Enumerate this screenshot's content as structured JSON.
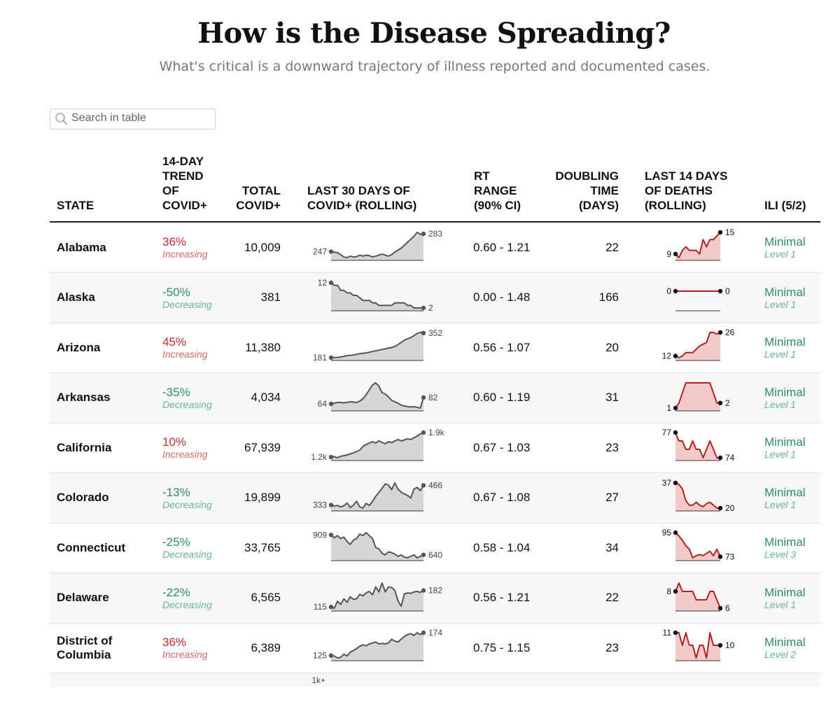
{
  "title": "How is the Disease Spreading?",
  "subtitle": "What's critical is a downward trajectory of illness reported and documented cases.",
  "search": {
    "placeholder": "Search in table",
    "icon": "search-icon"
  },
  "headers": {
    "state": [
      "STATE"
    ],
    "trend": [
      "14-DAY",
      "TREND",
      "OF",
      "COVID+"
    ],
    "total": [
      "TOTAL",
      "COVID+"
    ],
    "last30": [
      "LAST 30 DAYS OF",
      "COVID+ (ROLLING)"
    ],
    "rt": [
      "RT",
      "RANGE",
      "(90% CI)"
    ],
    "doubling": [
      "DOUBLING",
      "TIME",
      "(DAYS)"
    ],
    "deaths": [
      "LAST 14 DAYS",
      "OF DEATHS",
      "(ROLLING)"
    ],
    "ili": [
      "ILI (5/2)"
    ]
  },
  "colors": {
    "increasing": "#c62d2d",
    "decreasing": "#2e8b6e",
    "case_line": "#555555",
    "case_fill": "#d6d6d6",
    "death_line": "#b22222",
    "death_fill": "#f3caca"
  },
  "rows": [
    {
      "state": [
        "Alabama"
      ],
      "trend_pct": "36%",
      "trend_label": "Increasing",
      "direction": "inc",
      "total": "10,009",
      "case_start": "247",
      "case_end": "283",
      "case_series": [
        247,
        246,
        245,
        241,
        236,
        235,
        238,
        236,
        237,
        240,
        238,
        240,
        239,
        236,
        238,
        240,
        242,
        240,
        238,
        241,
        246,
        250,
        254,
        260,
        266,
        272,
        278,
        286,
        282,
        283
      ],
      "rt": "0.60 - 1.21",
      "doubling": "22",
      "death_start": "9",
      "death_end": "15",
      "death_series": [
        9,
        8,
        10,
        11,
        10,
        10,
        10,
        9,
        13,
        11,
        13,
        13,
        14,
        15
      ],
      "ili_level": "Minimal",
      "ili_detail": "Level 1"
    },
    {
      "state": [
        "Alaska"
      ],
      "trend_pct": "-50%",
      "trend_label": "Decreasing",
      "direction": "dec",
      "total": "381",
      "case_start": "12",
      "case_end": "2",
      "case_series": [
        12,
        11,
        11,
        9,
        9,
        8,
        8,
        7,
        7,
        6,
        5,
        5,
        5,
        4,
        4,
        3,
        3,
        3,
        3,
        3,
        4,
        4,
        4,
        4,
        3,
        3,
        2,
        2,
        2,
        2
      ],
      "rt": "0.00 - 1.48",
      "doubling": "166",
      "death_start": "0",
      "death_end": "0",
      "death_series": [
        0,
        0,
        0,
        0,
        0,
        0,
        0,
        0,
        0,
        0,
        0,
        0,
        0,
        0
      ],
      "ili_level": "Minimal",
      "ili_detail": "Level 1"
    },
    {
      "state": [
        "Arizona"
      ],
      "trend_pct": "45%",
      "trend_label": "Increasing",
      "direction": "inc",
      "total": "11,380",
      "case_start": "181",
      "case_end": "352",
      "case_series": [
        181,
        182,
        183,
        186,
        190,
        195,
        197,
        199,
        204,
        209,
        211,
        214,
        219,
        224,
        229,
        233,
        238,
        242,
        247,
        252,
        259,
        272,
        287,
        302,
        312,
        320,
        333,
        349,
        356,
        352
      ],
      "rt": "0.56 - 1.07",
      "doubling": "20",
      "death_start": "12",
      "death_end": "26",
      "death_series": [
        12,
        11,
        12,
        14,
        14,
        14,
        16,
        18,
        19,
        20,
        26,
        26,
        25,
        26
      ],
      "ili_level": "Minimal",
      "ili_detail": "Level 1"
    },
    {
      "state": [
        "Arkansas"
      ],
      "trend_pct": "-35%",
      "trend_label": "Decreasing",
      "direction": "dec",
      "total": "4,034",
      "case_start": "64",
      "case_end": "82",
      "case_series": [
        64,
        66,
        68,
        68,
        67,
        68,
        70,
        69,
        68,
        72,
        78,
        90,
        104,
        118,
        124,
        114,
        96,
        92,
        84,
        74,
        70,
        66,
        60,
        58,
        56,
        55,
        56,
        54,
        52,
        82
      ],
      "rt": "0.60 - 1.19",
      "doubling": "31",
      "death_start": "1",
      "death_end": "2",
      "death_series": [
        1,
        2,
        4,
        6,
        6,
        6,
        6,
        6,
        6,
        6,
        6,
        4,
        2,
        2
      ],
      "ili_level": "Minimal",
      "ili_detail": "Level 1"
    },
    {
      "state": [
        "California"
      ],
      "trend_pct": "10%",
      "trend_label": "Increasing",
      "direction": "inc",
      "total": "67,939",
      "case_start": "1.2k",
      "case_end": "1.9k",
      "case_series": [
        1200,
        1210,
        1180,
        1220,
        1240,
        1260,
        1290,
        1320,
        1360,
        1400,
        1500,
        1560,
        1600,
        1640,
        1600,
        1660,
        1620,
        1580,
        1640,
        1610,
        1660,
        1700,
        1660,
        1690,
        1720,
        1700,
        1750,
        1800,
        1860,
        1900
      ],
      "rt": "0.67 - 1.03",
      "doubling": "23",
      "death_start": "77",
      "death_end": "74",
      "death_series": [
        77,
        76,
        76,
        75,
        75,
        76,
        75,
        75,
        74,
        75,
        76,
        75,
        74,
        74
      ],
      "ili_level": "Minimal",
      "ili_detail": "Level 1"
    },
    {
      "state": [
        "Colorado"
      ],
      "trend_pct": "-13%",
      "trend_label": "Decreasing",
      "direction": "dec",
      "total": "19,899",
      "case_start": "333",
      "case_end": "466",
      "case_series": [
        333,
        326,
        330,
        320,
        328,
        346,
        316,
        332,
        358,
        320,
        312,
        344,
        330,
        358,
        392,
        418,
        446,
        476,
        468,
        436,
        482,
        440,
        420,
        408,
        398,
        380,
        440,
        452,
        430,
        466
      ],
      "rt": "0.67 - 1.08",
      "doubling": "27",
      "death_start": "37",
      "death_end": "20",
      "death_series": [
        37,
        36,
        33,
        25,
        22,
        22,
        24,
        22,
        21,
        23,
        24,
        22,
        20,
        20
      ],
      "ili_level": "Minimal",
      "ili_detail": "Level 1"
    },
    {
      "state": [
        "Connecticut"
      ],
      "trend_pct": "-25%",
      "trend_label": "Decreasing",
      "direction": "dec",
      "total": "33,765",
      "case_start": "909",
      "case_end": "640",
      "case_series": [
        909,
        870,
        900,
        860,
        880,
        820,
        780,
        840,
        860,
        920,
        900,
        940,
        900,
        860,
        740,
        720,
        660,
        640,
        680,
        670,
        650,
        620,
        640,
        610,
        600,
        620,
        640,
        600,
        620,
        640
      ],
      "rt": "0.58 - 1.04",
      "doubling": "34",
      "death_start": "95",
      "death_end": "73",
      "death_series": [
        95,
        92,
        88,
        83,
        80,
        72,
        74,
        75,
        74,
        76,
        78,
        74,
        80,
        73
      ],
      "ili_level": "Minimal",
      "ili_detail": "Level 3"
    },
    {
      "state": [
        "Delaware"
      ],
      "trend_pct": "-22%",
      "trend_label": "Decreasing",
      "direction": "dec",
      "total": "6,565",
      "case_start": "115",
      "case_end": "182",
      "case_series": [
        115,
        110,
        138,
        126,
        148,
        134,
        156,
        146,
        148,
        166,
        160,
        172,
        178,
        164,
        196,
        176,
        212,
        176,
        196,
        194,
        182,
        140,
        118,
        168,
        172,
        170,
        176,
        178,
        174,
        182
      ],
      "rt": "0.56 - 1.21",
      "doubling": "22",
      "death_start": "8",
      "death_end": "6",
      "death_series": [
        8,
        9,
        8,
        8,
        8,
        8,
        7,
        7,
        7,
        7,
        8,
        8,
        7,
        6
      ],
      "ili_level": "Minimal",
      "ili_detail": "Level 1"
    },
    {
      "state": [
        "District of",
        "Columbia"
      ],
      "trend_pct": "36%",
      "trend_label": "Increasing",
      "direction": "inc",
      "total": "6,389",
      "case_start": "125",
      "case_end": "174",
      "case_series": [
        125,
        124,
        120,
        121,
        128,
        124,
        132,
        136,
        140,
        145,
        148,
        146,
        150,
        152,
        154,
        150,
        151,
        150,
        152,
        160,
        156,
        154,
        160,
        166,
        170,
        172,
        168,
        174,
        170,
        174
      ],
      "rt": "0.75 - 1.15",
      "doubling": "23",
      "death_start": "11",
      "death_end": "10",
      "death_series": [
        11,
        11,
        10,
        11,
        10,
        10,
        9,
        10,
        10,
        9,
        11,
        10,
        10,
        10
      ],
      "ili_level": "Minimal",
      "ili_detail": "Level 2"
    },
    {
      "state": [
        ""
      ],
      "trend_pct": "",
      "trend_label": "",
      "direction": "inc",
      "total": "",
      "case_start": "1k+",
      "case_end": "",
      "case_series": [],
      "rt": "",
      "doubling": "",
      "death_start": "",
      "death_end": "",
      "death_series": [],
      "ili_level": "",
      "ili_detail": ""
    }
  ]
}
